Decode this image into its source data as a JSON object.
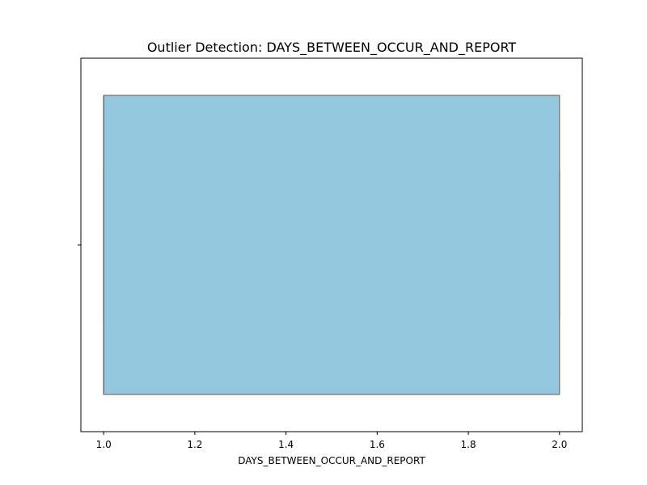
{
  "chart_data": {
    "type": "boxplot",
    "title": "Outlier Detection: DAYS_BETWEEN_OCCUR_AND_REPORT",
    "xlabel": "DAYS_BETWEEN_OCCUR_AND_REPORT",
    "ylabel": "",
    "orientation": "horizontal",
    "xlim": [
      0.95,
      2.05
    ],
    "xticks": [
      1.0,
      1.2,
      1.4,
      1.6,
      1.8,
      2.0
    ],
    "xtick_labels": [
      "1.0",
      "1.2",
      "1.4",
      "1.6",
      "1.8",
      "2.0"
    ],
    "box": {
      "min": 1.0,
      "q1": 1.0,
      "median": 1.0,
      "q3": 2.0,
      "max": 2.0
    },
    "outliers": [],
    "grid": false,
    "colors": {
      "box_fill": "#95c8de",
      "box_edge": "#6e6e6e",
      "axis": "#000000"
    }
  }
}
